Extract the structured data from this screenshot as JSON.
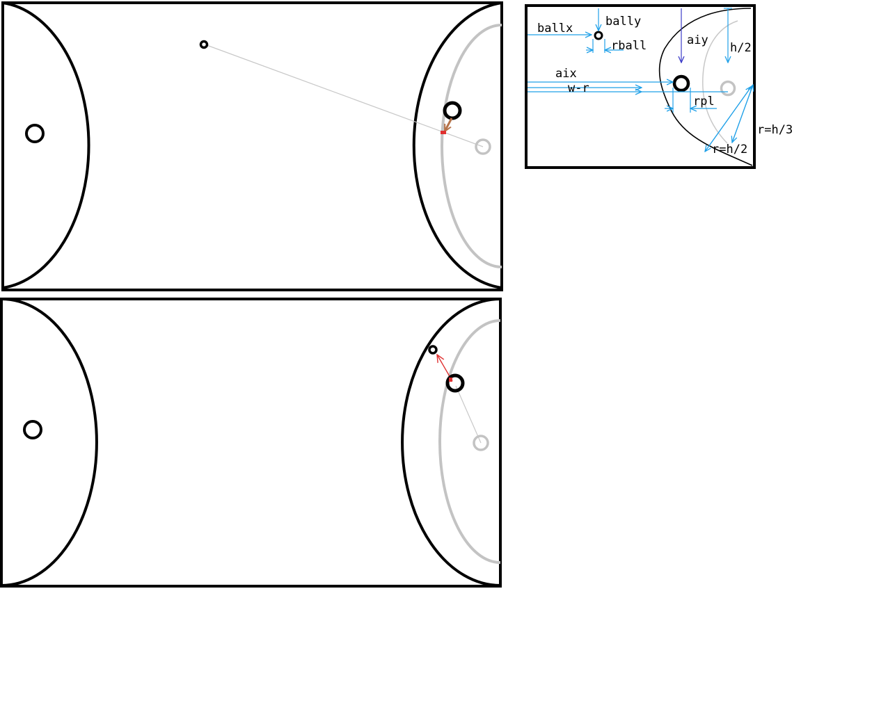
{
  "colors": {
    "outline": "#000000",
    "gray_arc": "#c3c3c3",
    "trajectory": "#c8c8c8",
    "arrow_red": "#e03030",
    "arrow_brown": "#b5734a",
    "annotation_blue": "#1fa0e8",
    "annotation_navy": "#3c3cc8"
  },
  "diagram": {
    "labels": {
      "ballx": "ballx",
      "bally": "bally",
      "rball": "rball",
      "aiy": "aiy",
      "h2": "h/2",
      "aix": "aix",
      "wr": "w-r",
      "rpl": "rpl",
      "rh3": "r=h/3",
      "rh2": "r=h/2"
    }
  }
}
